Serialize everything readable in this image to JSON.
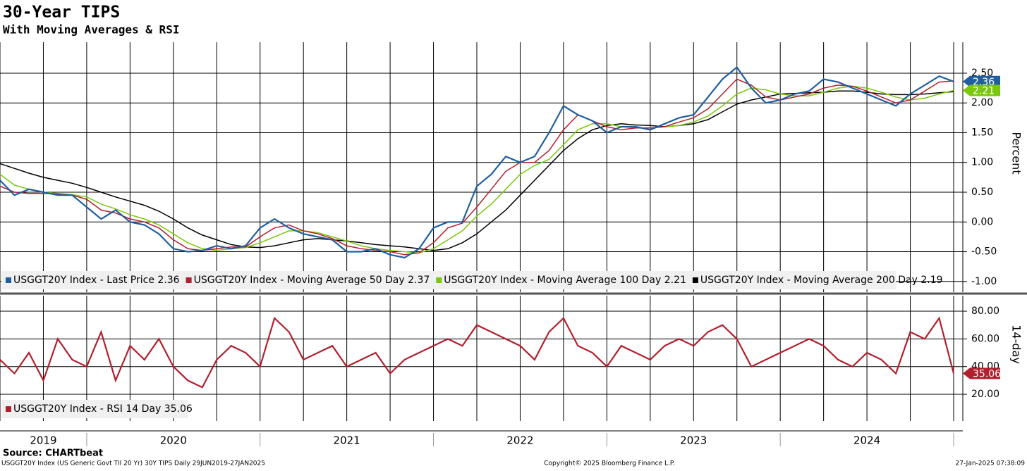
{
  "header": {
    "title": "30-Year TIPS",
    "subtitle": "With Moving Averages & RSI",
    "source": "Source: CHARTbeat"
  },
  "footer": {
    "left": "USGGT20Y Index (US Generic Govt TII 20 Yr) 30Y TIPS  Daily 29JUN2019-27JAN2025",
    "center": "Copyright© 2025 Bloomberg Finance L.P.",
    "right": "27-Jan-2025 07:38:09"
  },
  "chart_data": [
    {
      "type": "line",
      "y_label": "Percent",
      "categories": [
        null,
        null,
        null,
        "2019",
        null,
        null,
        null,
        null,
        null,
        null,
        null,
        null,
        "2020",
        null,
        null,
        null,
        null,
        null,
        null,
        null,
        null,
        null,
        null,
        null,
        "2021",
        null,
        null,
        null,
        null,
        null,
        null,
        null,
        null,
        null,
        null,
        null,
        "2022",
        null,
        null,
        null,
        null,
        null,
        null,
        null,
        null,
        null,
        null,
        null,
        "2023",
        null,
        null,
        null,
        null,
        null,
        null,
        null,
        null,
        null,
        null,
        null,
        "2024",
        null,
        null,
        null,
        null,
        null,
        null
      ],
      "ylim": [
        -1.18,
        3.02
      ],
      "yticks": [
        {
          "value": -1,
          "label": "-1.00"
        },
        {
          "value": -0.5,
          "label": "-0.50"
        },
        {
          "value": 0,
          "label": "0.00"
        },
        {
          "value": 0.5,
          "label": "0.50"
        },
        {
          "value": 1,
          "label": "1.00"
        },
        {
          "value": 1.5,
          "label": "1.50"
        },
        {
          "value": 2,
          "label": "2.00"
        },
        {
          "value": 2.5,
          "label": "2.50"
        }
      ],
      "grid": true,
      "series": [
        {
          "name": "USGGT20Y Index - Last Price 2.36",
          "color": "#1f5fa0",
          "values": [
            0.7,
            0.45,
            0.55,
            0.5,
            0.45,
            0.45,
            0.25,
            0.05,
            0.2,
            0.0,
            -0.05,
            -0.2,
            -0.45,
            -0.5,
            -0.48,
            -0.4,
            -0.45,
            -0.4,
            -0.1,
            0.05,
            -0.1,
            -0.2,
            -0.25,
            -0.3,
            -0.5,
            -0.5,
            -0.45,
            -0.55,
            -0.6,
            -0.45,
            -0.1,
            0.0,
            0.0,
            0.6,
            0.8,
            1.1,
            1.0,
            1.1,
            1.5,
            1.95,
            1.8,
            1.7,
            1.5,
            1.6,
            1.6,
            1.55,
            1.65,
            1.75,
            1.8,
            2.1,
            2.4,
            2.6,
            2.25,
            2.0,
            2.05,
            2.15,
            2.2,
            2.4,
            2.35,
            2.25,
            2.15,
            2.05,
            1.95,
            2.15,
            2.3,
            2.45,
            2.36
          ]
        },
        {
          "name": "USGGT20Y Index - Moving Average 50 Day 2.37",
          "color": "#b0202e",
          "values": [
            0.6,
            0.5,
            0.48,
            0.48,
            0.47,
            0.45,
            0.38,
            0.2,
            0.15,
            0.05,
            0.0,
            -0.1,
            -0.3,
            -0.45,
            -0.48,
            -0.45,
            -0.42,
            -0.42,
            -0.25,
            -0.1,
            -0.05,
            -0.15,
            -0.2,
            -0.28,
            -0.4,
            -0.45,
            -0.48,
            -0.5,
            -0.55,
            -0.52,
            -0.35,
            -0.1,
            -0.02,
            0.25,
            0.55,
            0.85,
            1.0,
            1.0,
            1.2,
            1.55,
            1.8,
            1.7,
            1.6,
            1.55,
            1.58,
            1.58,
            1.6,
            1.68,
            1.75,
            1.9,
            2.15,
            2.4,
            2.3,
            2.1,
            2.05,
            2.1,
            2.15,
            2.25,
            2.3,
            2.28,
            2.2,
            2.1,
            2.0,
            2.05,
            2.2,
            2.35,
            2.37
          ]
        },
        {
          "name": "USGGT20Y Index - Moving Average 100 Day 2.21",
          "color": "#7ac70c",
          "values": [
            0.8,
            0.62,
            0.55,
            0.5,
            0.48,
            0.46,
            0.42,
            0.3,
            0.22,
            0.12,
            0.05,
            -0.05,
            -0.2,
            -0.35,
            -0.45,
            -0.48,
            -0.45,
            -0.43,
            -0.35,
            -0.25,
            -0.15,
            -0.15,
            -0.18,
            -0.25,
            -0.32,
            -0.4,
            -0.45,
            -0.48,
            -0.5,
            -0.52,
            -0.45,
            -0.3,
            -0.15,
            0.1,
            0.3,
            0.55,
            0.8,
            0.95,
            1.05,
            1.3,
            1.55,
            1.65,
            1.65,
            1.6,
            1.58,
            1.58,
            1.6,
            1.62,
            1.68,
            1.78,
            1.95,
            2.15,
            2.25,
            2.22,
            2.15,
            2.12,
            2.12,
            2.18,
            2.25,
            2.28,
            2.25,
            2.18,
            2.1,
            2.05,
            2.08,
            2.15,
            2.21
          ]
        },
        {
          "name": "USGGT20Y Index - Moving Average 200 Day 2.19",
          "color": "#000000",
          "values": [
            0.98,
            0.9,
            0.82,
            0.75,
            0.7,
            0.65,
            0.58,
            0.5,
            0.42,
            0.35,
            0.28,
            0.18,
            0.05,
            -0.1,
            -0.22,
            -0.3,
            -0.38,
            -0.42,
            -0.43,
            -0.4,
            -0.35,
            -0.3,
            -0.28,
            -0.3,
            -0.32,
            -0.35,
            -0.38,
            -0.4,
            -0.42,
            -0.45,
            -0.48,
            -0.45,
            -0.35,
            -0.2,
            0.0,
            0.2,
            0.45,
            0.7,
            0.95,
            1.2,
            1.4,
            1.55,
            1.62,
            1.65,
            1.63,
            1.62,
            1.6,
            1.62,
            1.65,
            1.72,
            1.85,
            1.98,
            2.05,
            2.1,
            2.15,
            2.16,
            2.17,
            2.18,
            2.2,
            2.2,
            2.18,
            2.15,
            2.14,
            2.14,
            2.15,
            2.17,
            2.19
          ]
        }
      ],
      "annotations": [
        {
          "label": "2.36",
          "value": 2.36,
          "color": "#1f5fa0"
        },
        {
          "label": "2.21",
          "value": 2.21,
          "color": "#7ac70c"
        }
      ]
    },
    {
      "type": "line",
      "y_label": "14-day",
      "ylim": [
        0.7,
        91.2
      ],
      "yticks": [
        {
          "value": 20,
          "label": "20.00"
        },
        {
          "value": 40,
          "label": "40.00"
        },
        {
          "value": 60,
          "label": "60.00"
        },
        {
          "value": 80,
          "label": "80.00"
        }
      ],
      "grid": true,
      "series": [
        {
          "name": "USGGT20Y Index - RSI 14 Day 35.06",
          "color": "#b0202e",
          "values": [
            45,
            35,
            50,
            30,
            60,
            45,
            40,
            65,
            30,
            55,
            45,
            60,
            40,
            30,
            25,
            45,
            55,
            50,
            40,
            75,
            65,
            45,
            50,
            55,
            40,
            45,
            50,
            35,
            45,
            50,
            55,
            60,
            55,
            70,
            65,
            60,
            55,
            45,
            65,
            75,
            55,
            50,
            40,
            55,
            50,
            45,
            55,
            60,
            55,
            65,
            70,
            60,
            40,
            45,
            50,
            55,
            60,
            55,
            45,
            40,
            50,
            45,
            35,
            65,
            60,
            75,
            35.06
          ]
        }
      ],
      "annotations": [
        {
          "label": "35.06",
          "value": 35.06,
          "color": "#b0202e"
        }
      ]
    }
  ]
}
